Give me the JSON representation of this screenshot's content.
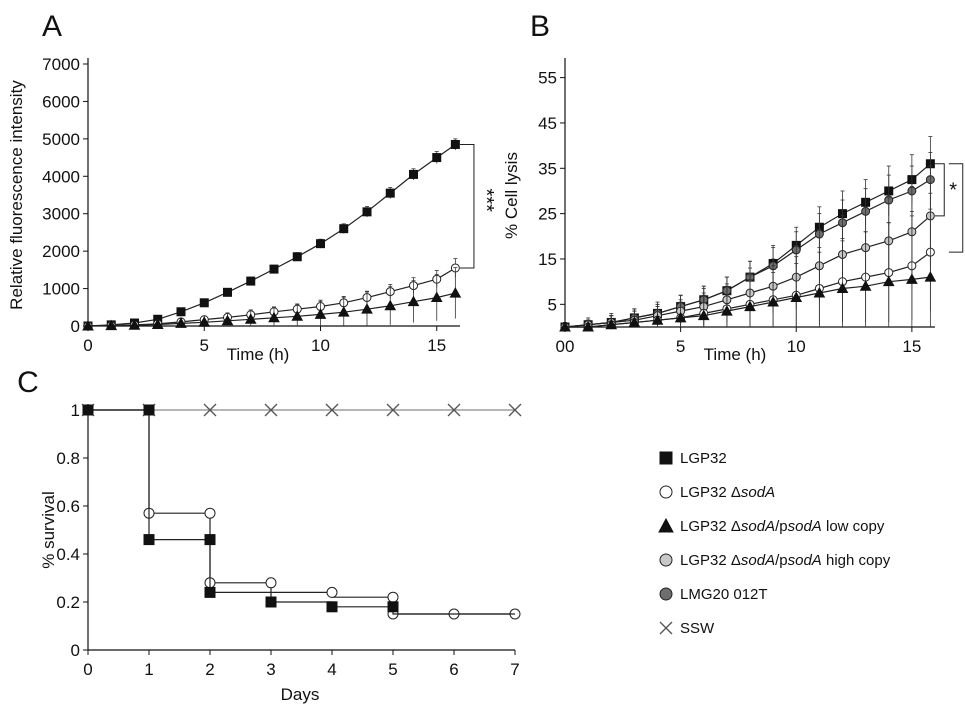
{
  "figure": {
    "legend": [
      {
        "key": "LGP32",
        "parts": [
          {
            "t": "LGP32",
            "i": false
          }
        ],
        "marker": "square",
        "fill": "#111111"
      },
      {
        "key": "dsodA",
        "parts": [
          {
            "t": "LGP32 ",
            "i": false
          },
          {
            "t": "Δ",
            "i": false
          },
          {
            "t": "sodA",
            "i": true
          }
        ],
        "marker": "circle",
        "fill": "#ffffff"
      },
      {
        "key": "low",
        "parts": [
          {
            "t": "LGP32 ",
            "i": false
          },
          {
            "t": "Δ",
            "i": false
          },
          {
            "t": "sodA",
            "i": true
          },
          {
            "t": "/p",
            "i": false
          },
          {
            "t": "sodA",
            "i": true
          },
          {
            "t": " low copy",
            "i": false
          }
        ],
        "marker": "triangle",
        "fill": "#111111"
      },
      {
        "key": "high",
        "parts": [
          {
            "t": "LGP32 ",
            "i": false
          },
          {
            "t": "Δ",
            "i": false
          },
          {
            "t": "sodA",
            "i": true
          },
          {
            "t": "/p",
            "i": false
          },
          {
            "t": "sodA",
            "i": true
          },
          {
            "t": " high copy",
            "i": false
          }
        ],
        "marker": "circle",
        "fill": "#c8c8c8"
      },
      {
        "key": "lmg",
        "parts": [
          {
            "t": "LMG20 012T",
            "i": false
          }
        ],
        "marker": "circle",
        "fill": "#6e6e6e"
      },
      {
        "key": "ssw",
        "parts": [
          {
            "t": "SSW",
            "i": false
          }
        ],
        "marker": "x",
        "fill": "#555555"
      }
    ]
  },
  "chart_data": [
    {
      "panel": "A",
      "type": "line",
      "xlabel": "Time (h)",
      "ylabel": "Relative fluorescence intensity",
      "xlim": [
        0,
        16
      ],
      "ylim": [
        0,
        7000
      ],
      "xticks": [
        0,
        5,
        10,
        15
      ],
      "yticks": [
        0,
        1000,
        2000,
        3000,
        4000,
        5000,
        6000,
        7000
      ],
      "annotation": "***",
      "x": [
        0,
        1,
        2,
        3,
        4,
        5,
        6,
        7,
        8,
        9,
        10,
        11,
        12,
        13,
        14,
        15,
        15.8
      ],
      "series": [
        {
          "key": "LGP32",
          "values": [
            0,
            30,
            80,
            180,
            380,
            620,
            900,
            1200,
            1520,
            1850,
            2200,
            2600,
            3050,
            3550,
            4050,
            4500,
            4850
          ],
          "err": [
            20,
            40,
            50,
            60,
            70,
            80,
            90,
            100,
            100,
            110,
            120,
            130,
            140,
            150,
            150,
            160,
            150
          ]
        },
        {
          "key": "dsodA",
          "values": [
            0,
            10,
            30,
            60,
            110,
            170,
            230,
            300,
            380,
            450,
            520,
            620,
            760,
            920,
            1080,
            1250,
            1550
          ],
          "err": [
            20,
            30,
            40,
            50,
            60,
            80,
            90,
            100,
            110,
            120,
            140,
            150,
            170,
            190,
            210,
            230,
            250
          ]
        },
        {
          "key": "low",
          "values": [
            0,
            10,
            20,
            40,
            70,
            100,
            140,
            180,
            220,
            260,
            310,
            370,
            450,
            540,
            650,
            760,
            880
          ],
          "err": [
            30,
            50,
            70,
            100,
            130,
            170,
            210,
            250,
            290,
            330,
            380,
            420,
            460,
            510,
            560,
            620,
            680
          ]
        }
      ]
    },
    {
      "panel": "B",
      "type": "line",
      "xlabel": "Time (h)",
      "ylabel": "% Cell lysis",
      "xlim": [
        0,
        16
      ],
      "ylim": [
        0,
        58
      ],
      "xticks": [
        0,
        5,
        10,
        15
      ],
      "xtick_labels": [
        "00",
        "5",
        "10",
        "15"
      ],
      "yticks": [
        5,
        15,
        25,
        35,
        45,
        55
      ],
      "annotation": "*",
      "x": [
        0,
        1,
        2,
        3,
        4,
        5,
        6,
        7,
        8,
        9,
        10,
        11,
        12,
        13,
        14,
        15,
        15.8
      ],
      "series": [
        {
          "key": "LGP32",
          "values": [
            0,
            0.5,
            1,
            2,
            3,
            4.5,
            6,
            8,
            11,
            14,
            18,
            22,
            25,
            27.5,
            30,
            32.5,
            36
          ],
          "err": [
            1,
            1,
            1.5,
            2,
            2,
            2.5,
            3,
            3,
            3.5,
            4,
            4,
            4.5,
            5,
            5,
            5.5,
            5.5,
            6
          ]
        },
        {
          "key": "lmg",
          "values": [
            0,
            0.5,
            1,
            2,
            3,
            4.5,
            6,
            8,
            11,
            13.5,
            17,
            20.5,
            23,
            25.5,
            28,
            30,
            32.5
          ],
          "err": [
            1,
            1,
            1.5,
            2,
            2,
            2.5,
            3,
            3,
            3.5,
            4,
            4,
            4.5,
            5,
            5,
            5.5,
            5.5,
            6
          ]
        },
        {
          "key": "high",
          "values": [
            0,
            0.5,
            1,
            1.5,
            2.5,
            3.5,
            4.5,
            6,
            7.5,
            9,
            11,
            13.5,
            16,
            17.5,
            19,
            21,
            24.5
          ],
          "err": [
            1,
            1.5,
            2,
            2.5,
            3,
            3.5,
            4,
            5,
            5.5,
            6,
            7,
            8,
            8.5,
            9,
            9.5,
            10,
            11
          ]
        },
        {
          "key": "dsodA",
          "values": [
            0,
            0,
            0.5,
            1,
            1.5,
            2,
            3,
            4,
            5,
            6,
            7,
            8.5,
            10,
            11,
            12,
            13.5,
            16.5
          ],
          "err": [
            1,
            1.5,
            2,
            2.5,
            3,
            3.5,
            4,
            5,
            5.5,
            6,
            7,
            8,
            9,
            10,
            11,
            12,
            13
          ]
        },
        {
          "key": "low",
          "values": [
            0,
            0,
            0.5,
            1,
            1.5,
            2,
            2.5,
            3.5,
            4.5,
            5.5,
            6.5,
            7.5,
            8.5,
            9,
            10,
            10.5,
            11
          ],
          "err": [
            1,
            1.5,
            2,
            2.5,
            3,
            4,
            5,
            6,
            7,
            8,
            9,
            10,
            11,
            12,
            13,
            14,
            15
          ]
        }
      ]
    },
    {
      "panel": "C",
      "type": "line",
      "subtype": "step",
      "xlabel": "Days",
      "ylabel": "% survival",
      "xlim": [
        0,
        7
      ],
      "ylim": [
        0,
        1
      ],
      "xticks": [
        0,
        1,
        2,
        3,
        4,
        5,
        6,
        7
      ],
      "yticks": [
        0,
        0.2,
        0.4,
        0.6,
        0.8,
        1
      ],
      "ytick_labels": [
        "0",
        "0.2",
        "0.4",
        "0.6",
        "0.8",
        "1"
      ],
      "series": [
        {
          "key": "ssw",
          "points": [
            [
              0,
              1
            ],
            [
              1,
              1
            ],
            [
              2,
              1
            ],
            [
              3,
              1
            ],
            [
              4,
              1
            ],
            [
              5,
              1
            ],
            [
              6,
              1
            ],
            [
              7,
              1
            ]
          ],
          "markers": [
            [
              0,
              1
            ],
            [
              1,
              1
            ],
            [
              2,
              1
            ],
            [
              3,
              1
            ],
            [
              4,
              1
            ],
            [
              5,
              1
            ],
            [
              6,
              1
            ],
            [
              7,
              1
            ]
          ]
        },
        {
          "key": "dsodA",
          "points": [
            [
              0,
              1
            ],
            [
              1,
              1
            ],
            [
              1,
              0.57
            ],
            [
              2,
              0.57
            ],
            [
              2,
              0.28
            ],
            [
              3,
              0.28
            ],
            [
              3,
              0.24
            ],
            [
              4,
              0.24
            ],
            [
              4,
              0.22
            ],
            [
              5,
              0.22
            ],
            [
              5,
              0.15
            ],
            [
              7,
              0.15
            ]
          ],
          "markers": [
            [
              1,
              0.57
            ],
            [
              2,
              0.57
            ],
            [
              2,
              0.28
            ],
            [
              3,
              0.28
            ],
            [
              4,
              0.24
            ],
            [
              5,
              0.22
            ],
            [
              5,
              0.15
            ],
            [
              6,
              0.15
            ],
            [
              7,
              0.15
            ]
          ]
        },
        {
          "key": "LGP32",
          "points": [
            [
              0,
              1
            ],
            [
              1,
              1
            ],
            [
              1,
              0.46
            ],
            [
              2,
              0.46
            ],
            [
              2,
              0.24
            ],
            [
              3,
              0.24
            ],
            [
              3,
              0.2
            ],
            [
              4,
              0.2
            ],
            [
              4,
              0.18
            ],
            [
              5,
              0.18
            ],
            [
              5,
              0.15
            ],
            [
              7,
              0.15
            ]
          ],
          "markers": [
            [
              0,
              1
            ],
            [
              1,
              1
            ],
            [
              1,
              0.46
            ],
            [
              2,
              0.46
            ],
            [
              2,
              0.24
            ],
            [
              3,
              0.2
            ],
            [
              4,
              0.18
            ],
            [
              5,
              0.18
            ]
          ]
        }
      ]
    }
  ]
}
